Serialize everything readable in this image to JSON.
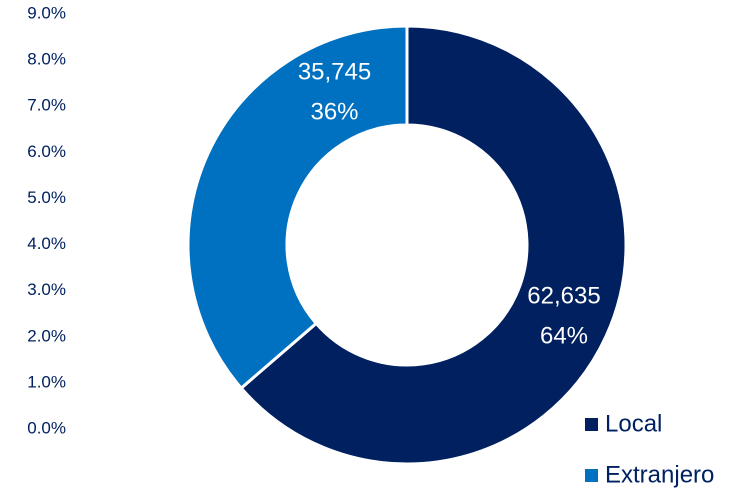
{
  "chart_data": {
    "type": "pie",
    "variant": "donut",
    "title": "",
    "y_axis": {
      "ticks": [
        "0.0%",
        "1.0%",
        "2.0%",
        "3.0%",
        "4.0%",
        "5.0%",
        "6.0%",
        "7.0%",
        "8.0%",
        "9.0%"
      ],
      "range": [
        0,
        9
      ]
    },
    "slices": [
      {
        "name": "Local",
        "value": 62635,
        "value_label": "62,635",
        "percent_label": "64%",
        "color": "#002060"
      },
      {
        "name": "Extranjero",
        "value": 35745,
        "value_label": "35,745",
        "percent_label": "36%",
        "color": "#0070C0"
      }
    ],
    "legend": {
      "position": "bottom-right",
      "entries": [
        "Local",
        "Extranjero"
      ]
    },
    "colors": {
      "local": "#002060",
      "extranjero": "#0070C0",
      "axis_text": "#002060",
      "label_text": "#ffffff"
    }
  }
}
